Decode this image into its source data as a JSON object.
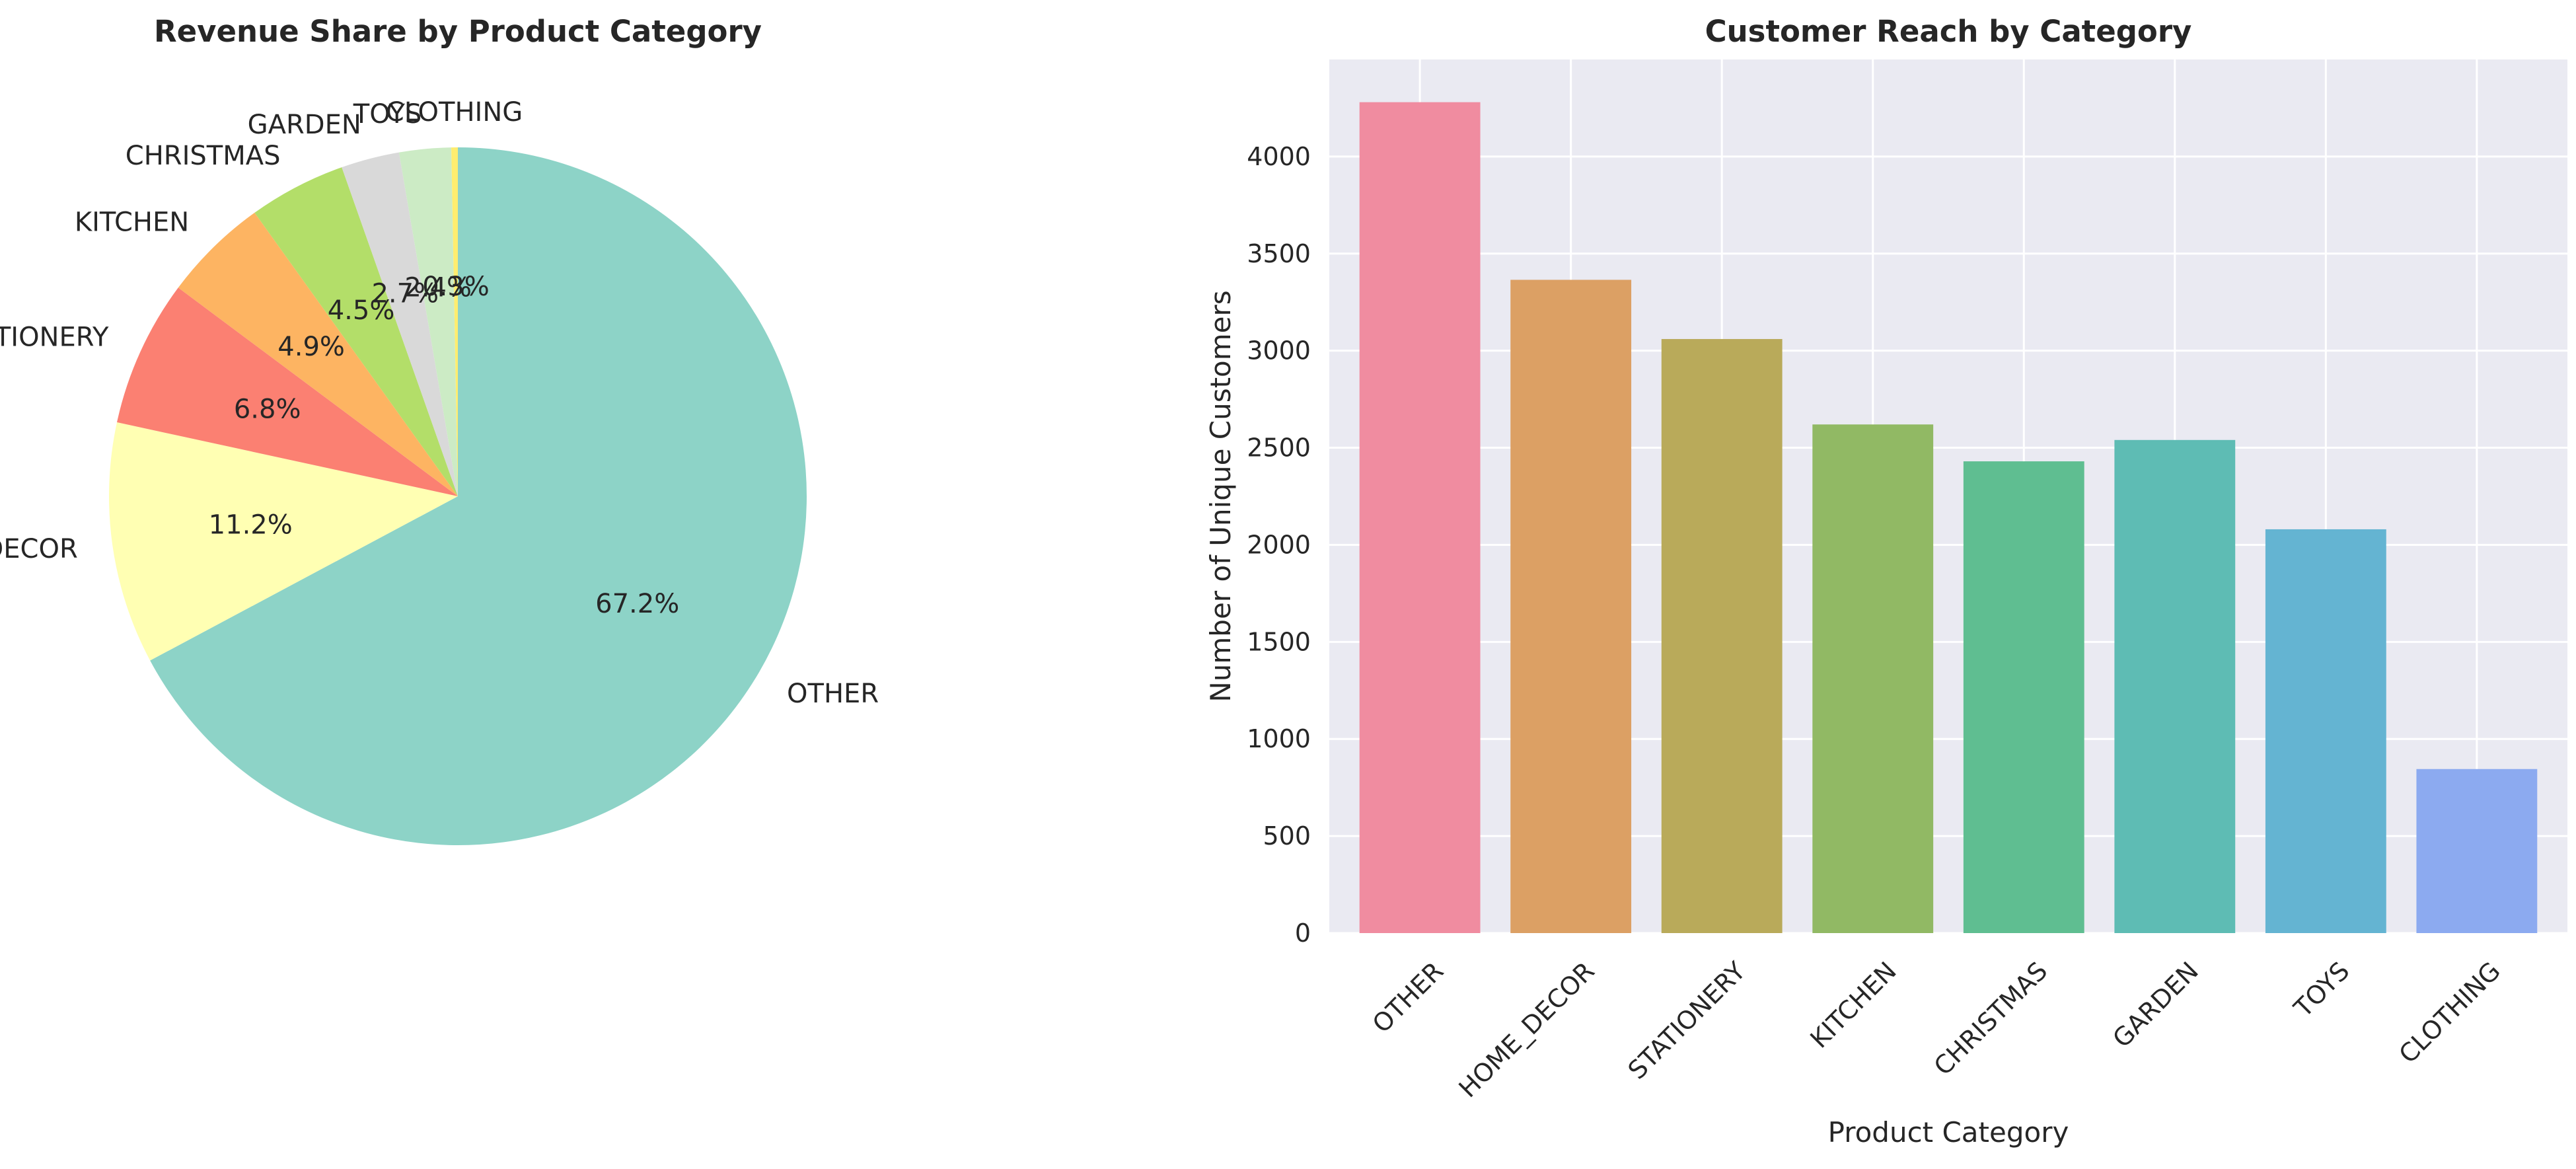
{
  "colors": {
    "pie_slices": [
      "#8dd3c7",
      "#ffffb3",
      "#fb8072",
      "#fdb462",
      "#b3de69",
      "#d9d9d9",
      "#ccebc5",
      "#ffed6f"
    ],
    "bars": [
      "#f08ca0",
      "#dca064",
      "#b9aa5a",
      "#91b964",
      "#5fbe91",
      "#5ebcb4",
      "#64b4d2",
      "#8caaf0"
    ],
    "bar_panel_bg": "#eaeaf2",
    "grid": "#ffffff"
  },
  "chart_data": [
    {
      "type": "pie",
      "title": "Revenue Share by Product Category",
      "categories": [
        "OTHER",
        "HOME_DECOR",
        "STATIONERY",
        "KITCHEN",
        "CHRISTMAS",
        "GARDEN",
        "TOYS",
        "CLOTHING"
      ],
      "values": [
        67.2,
        11.2,
        6.8,
        4.9,
        4.5,
        2.7,
        2.4,
        0.3
      ],
      "value_labels": [
        "67.2%",
        "11.2%",
        "6.8%",
        "4.9%",
        "4.5%",
        "2.7%",
        "2.4%",
        "0.3%"
      ],
      "start_angle": 90,
      "direction": "clockwise"
    },
    {
      "type": "bar",
      "title": "Customer Reach by Category",
      "categories": [
        "OTHER",
        "HOME_DECOR",
        "STATIONERY",
        "KITCHEN",
        "CHRISTMAS",
        "GARDEN",
        "TOYS",
        "CLOTHING"
      ],
      "values": [
        4280,
        3365,
        3060,
        2620,
        2430,
        2540,
        2080,
        845
      ],
      "xlabel": "Product Category",
      "ylabel": "Number of Unique Customers",
      "ylim": [
        0,
        4500
      ],
      "yticks": [
        "0",
        "500",
        "1000",
        "1500",
        "2000",
        "2500",
        "3000",
        "3500",
        "4000"
      ],
      "grid": true
    }
  ]
}
